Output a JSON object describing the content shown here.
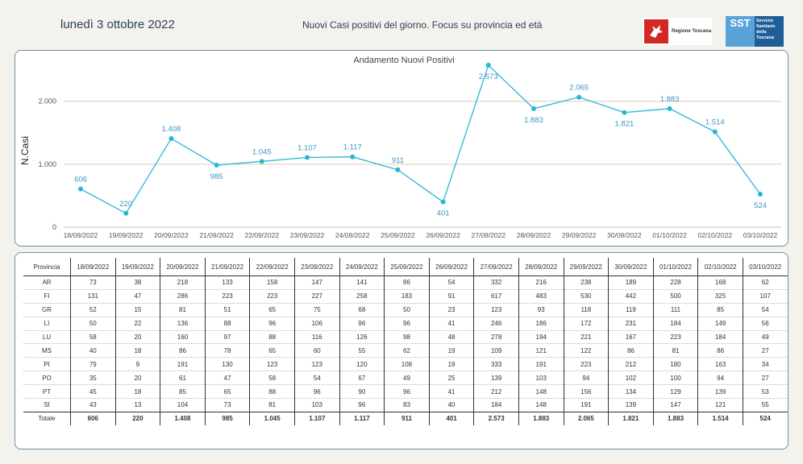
{
  "header": {
    "date": "lunedì 3 ottobre 2022",
    "subtitle": "Nuovi Casi positivi del giorno. Focus su provincia ed età",
    "logo_rt_text": "Regione Toscana",
    "logo_sst_short": "SST",
    "logo_sst_lines": [
      "Servizio",
      "Sanitario",
      "della",
      "Toscana"
    ]
  },
  "chart_data": {
    "type": "line",
    "title": "Andamento Nuovi Positivi",
    "ylabel": "N.Casi",
    "xlabel": "",
    "ylim": [
      0,
      2700
    ],
    "yticks": [
      0,
      1000,
      2000
    ],
    "ytick_labels": [
      "0",
      "1.000",
      "2.000"
    ],
    "line_color": "#29b6d6",
    "grid_color": "#e8c9b0",
    "categories": [
      "18/09/2022",
      "19/09/2022",
      "20/09/2022",
      "21/09/2022",
      "22/09/2022",
      "23/09/2022",
      "24/09/2022",
      "25/09/2022",
      "26/09/2022",
      "27/09/2022",
      "28/09/2022",
      "29/09/2022",
      "30/09/2022",
      "01/10/2022",
      "02/10/2022",
      "03/10/2022"
    ],
    "values": [
      606,
      220,
      1408,
      985,
      1045,
      1107,
      1117,
      911,
      401,
      2573,
      1883,
      2065,
      1821,
      1883,
      1514,
      524
    ],
    "data_labels": [
      "606",
      "220",
      "1.408",
      "985",
      "1.045",
      "1.107",
      "1.117",
      "911",
      "401",
      "2.573",
      "1.883",
      "2.065",
      "1.821",
      "1.883",
      "1.514",
      "524"
    ],
    "label_positions": [
      "above",
      "above",
      "above",
      "below",
      "above",
      "above",
      "above",
      "above",
      "below",
      "below",
      "below",
      "above",
      "below",
      "above",
      "above",
      "below"
    ]
  },
  "table": {
    "header_label": "Provincia",
    "columns": [
      "18/09/2022",
      "19/09/2022",
      "20/09/2022",
      "21/09/2022",
      "22/09/2022",
      "23/09/2022",
      "24/09/2022",
      "25/09/2022",
      "26/09/2022",
      "27/09/2022",
      "28/09/2022",
      "29/09/2022",
      "30/09/2022",
      "01/10/2022",
      "02/10/2022",
      "03/10/2022"
    ],
    "rows": [
      {
        "name": "AR",
        "values": [
          "73",
          "38",
          "218",
          "133",
          "158",
          "147",
          "141",
          "86",
          "54",
          "332",
          "216",
          "238",
          "189",
          "228",
          "168",
          "62"
        ]
      },
      {
        "name": "FI",
        "values": [
          "131",
          "47",
          "286",
          "223",
          "223",
          "227",
          "258",
          "183",
          "91",
          "617",
          "483",
          "530",
          "442",
          "500",
          "325",
          "107"
        ]
      },
      {
        "name": "GR",
        "values": [
          "52",
          "15",
          "81",
          "51",
          "65",
          "75",
          "68",
          "50",
          "23",
          "123",
          "93",
          "118",
          "119",
          "111",
          "85",
          "54"
        ]
      },
      {
        "name": "LI",
        "values": [
          "50",
          "22",
          "136",
          "88",
          "96",
          "106",
          "96",
          "96",
          "41",
          "246",
          "186",
          "172",
          "231",
          "184",
          "149",
          "56"
        ]
      },
      {
        "name": "LU",
        "values": [
          "58",
          "20",
          "160",
          "97",
          "88",
          "116",
          "126",
          "98",
          "48",
          "278",
          "194",
          "221",
          "167",
          "223",
          "184",
          "49"
        ]
      },
      {
        "name": "MS",
        "values": [
          "40",
          "18",
          "86",
          "78",
          "65",
          "60",
          "55",
          "62",
          "19",
          "109",
          "121",
          "122",
          "86",
          "81",
          "86",
          "27"
        ]
      },
      {
        "name": "PI",
        "values": [
          "79",
          "9",
          "191",
          "130",
          "123",
          "123",
          "120",
          "108",
          "19",
          "333",
          "191",
          "223",
          "212",
          "180",
          "163",
          "34"
        ]
      },
      {
        "name": "PO",
        "values": [
          "35",
          "20",
          "61",
          "47",
          "58",
          "54",
          "67",
          "49",
          "25",
          "139",
          "103",
          "94",
          "102",
          "100",
          "94",
          "27"
        ]
      },
      {
        "name": "PT",
        "values": [
          "45",
          "18",
          "85",
          "65",
          "88",
          "96",
          "90",
          "96",
          "41",
          "212",
          "148",
          "156",
          "134",
          "129",
          "139",
          "53"
        ]
      },
      {
        "name": "SI",
        "values": [
          "43",
          "13",
          "104",
          "73",
          "81",
          "103",
          "96",
          "83",
          "40",
          "184",
          "148",
          "191",
          "139",
          "147",
          "121",
          "55"
        ]
      }
    ],
    "total": {
      "name": "Totale",
      "values": [
        "606",
        "220",
        "1.408",
        "985",
        "1.045",
        "1.107",
        "1.117",
        "911",
        "401",
        "2.573",
        "1.883",
        "2.065",
        "1.821",
        "1.883",
        "1.514",
        "524"
      ]
    }
  }
}
